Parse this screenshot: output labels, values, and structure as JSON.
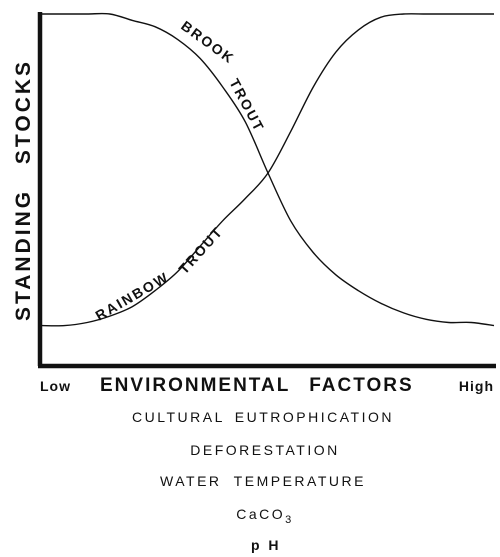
{
  "chart_data": {
    "type": "line",
    "title": "",
    "xlabel": "ENVIRONMENTAL FACTORS",
    "ylabel": "STANDING STOCKS",
    "x_low_label": "Low",
    "x_high_label": "High",
    "xlim": [
      0,
      1
    ],
    "ylim": [
      0,
      1
    ],
    "grid": false,
    "legend": "none",
    "x": [
      0,
      0.05,
      0.1,
      0.15,
      0.2,
      0.25,
      0.3,
      0.35,
      0.4,
      0.45,
      0.5,
      0.55,
      0.6,
      0.65,
      0.7,
      0.75,
      0.8,
      0.85,
      0.9,
      0.95,
      1.0
    ],
    "series": [
      {
        "name": "BROOK TROUT",
        "label_parts": [
          "BROOK",
          "TROUT"
        ],
        "values": [
          1.0,
          1.0,
          1.0,
          1.0,
          0.98,
          0.96,
          0.92,
          0.86,
          0.77,
          0.66,
          0.5,
          0.35,
          0.25,
          0.18,
          0.13,
          0.09,
          0.06,
          0.04,
          0.03,
          0.03,
          0.02
        ]
      },
      {
        "name": "RAINBOW TROUT",
        "label_parts": [
          "RAINBOW",
          "TROUT"
        ],
        "values": [
          0.02,
          0.02,
          0.03,
          0.05,
          0.08,
          0.13,
          0.19,
          0.27,
          0.35,
          0.42,
          0.5,
          0.63,
          0.77,
          0.88,
          0.95,
          0.99,
          1.0,
          1.0,
          1.0,
          1.0,
          1.0
        ]
      }
    ],
    "factors": [
      "CULTURAL EUTROPHICATION",
      "DEFORESTATION",
      "WATER TEMPERATURE"
    ],
    "factor_caco3": {
      "prefix": "CaCO",
      "subscript": "3"
    },
    "factor_ph": "p H"
  }
}
